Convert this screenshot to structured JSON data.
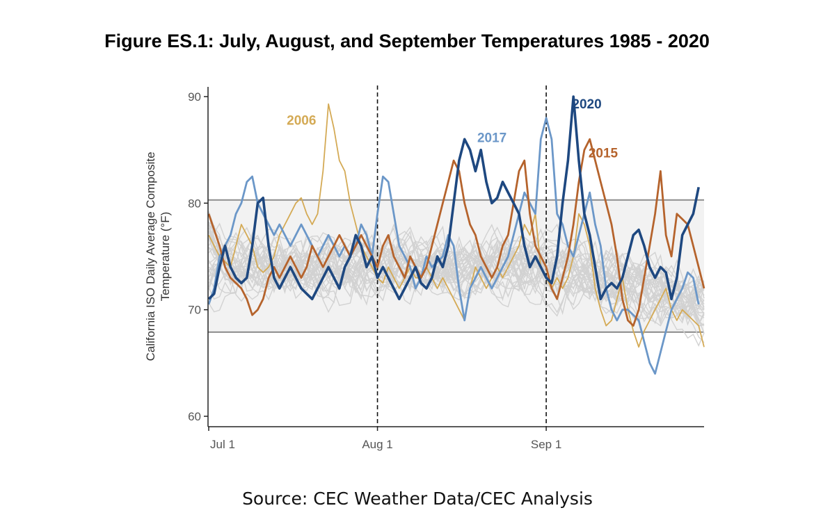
{
  "figure": {
    "title": "Figure ES.1: July, August, and September Temperatures 1985 - 2020",
    "source": "Source: CEC Weather Data/CEC Analysis"
  },
  "chart_data": {
    "type": "line",
    "ylabel": "California ISO Daily Average Composite Temperature (°F)",
    "xlabel": "",
    "ylim": [
      59,
      91
    ],
    "xlim": [
      1,
      92
    ],
    "yticks": [
      60,
      70,
      80,
      90
    ],
    "xticks": [
      {
        "day": 1,
        "label": "Jul 1"
      },
      {
        "day": 32,
        "label": "Aug 1"
      },
      {
        "day": 63,
        "label": "Sep 1"
      }
    ],
    "vertical_markers": [
      32,
      63
    ],
    "band": {
      "low": 67.9,
      "high": 80.3
    },
    "grid": false,
    "background_years_range": "1985 - 2020",
    "background_color": "#d2d2d2",
    "highlighted_series": [
      {
        "name": "2006",
        "color": "#d4aa55",
        "label_day": 23,
        "label_value": 88.8,
        "values": [
          77,
          76,
          75,
          74.5,
          74,
          76,
          78,
          77,
          76,
          74,
          73.5,
          74,
          75,
          77,
          78,
          79,
          80,
          80.5,
          79,
          78,
          79,
          83,
          89.3,
          87,
          84,
          83,
          80,
          78,
          76,
          75,
          74,
          73,
          72.5,
          74,
          73,
          72,
          73,
          74,
          73,
          73,
          74,
          73,
          72,
          73,
          72,
          71,
          70,
          69,
          72,
          74,
          73,
          72,
          73,
          74,
          73,
          74,
          75,
          76,
          78,
          77,
          79,
          74,
          73,
          72,
          73,
          72,
          73,
          75,
          79,
          78,
          76,
          72,
          70,
          68.5,
          69,
          71,
          73,
          70,
          68,
          66.5,
          68,
          69,
          70,
          71,
          72,
          70,
          69,
          70,
          69.5,
          69,
          68.5,
          66.5
        ]
      },
      {
        "name": "2017",
        "color": "#6b97c8",
        "label_day": 58,
        "label_value": 86.9,
        "values": [
          70.5,
          72,
          75,
          76,
          77,
          79,
          80,
          82,
          82.5,
          80,
          79,
          78,
          77,
          78,
          77,
          76,
          77,
          78,
          77,
          76,
          75,
          76,
          77,
          76,
          75,
          76,
          75,
          76,
          78,
          77,
          75,
          79,
          82.5,
          82,
          79,
          76,
          75,
          74,
          72,
          73,
          75,
          74,
          74.5,
          75,
          77,
          76,
          72,
          69,
          72,
          73,
          74,
          73,
          72,
          73,
          74,
          75,
          77,
          79,
          81,
          80,
          79,
          86,
          88,
          86,
          79,
          78,
          76,
          75,
          77,
          79,
          81,
          78,
          76,
          72,
          70,
          69,
          70,
          70,
          69.5,
          69,
          67,
          65,
          64,
          66,
          68,
          70,
          71,
          72,
          73.5,
          73,
          70.5
        ]
      },
      {
        "name": "2015",
        "color": "#b5632c",
        "label_day": 70,
        "label_value": 85.2,
        "values": [
          79,
          77.5,
          76,
          74,
          73,
          72.5,
          72,
          71,
          69.5,
          70,
          71,
          73,
          74,
          73,
          74,
          75,
          74,
          73,
          74,
          76,
          75,
          74,
          75,
          76,
          77,
          76,
          75,
          76,
          77,
          76,
          75,
          74,
          76,
          77,
          75,
          74,
          73,
          75,
          74,
          73,
          74,
          76,
          78,
          80,
          82,
          84,
          83,
          80,
          78,
          77,
          75,
          74,
          73,
          74,
          76,
          77,
          80,
          83,
          84,
          79,
          76,
          75,
          74,
          72,
          71,
          73,
          75,
          78,
          82,
          85,
          86,
          84,
          82,
          80,
          78,
          75,
          71,
          69,
          68.5,
          70,
          73,
          76,
          79,
          83,
          77,
          75,
          79,
          78.5,
          78,
          76,
          74,
          72
        ]
      },
      {
        "name": "2020",
        "color": "#1e4880",
        "label_day": 67,
        "label_value": 89.4,
        "values": [
          71,
          71.5,
          74,
          76,
          74,
          73,
          72.5,
          73,
          76,
          80,
          80.5,
          76,
          73,
          72,
          73,
          74,
          73,
          72,
          71.5,
          71,
          72,
          73,
          74,
          73,
          72,
          74,
          75,
          77,
          76,
          74,
          75,
          73,
          74,
          73,
          72,
          71,
          72,
          73,
          74,
          72.5,
          72,
          73,
          75,
          74,
          76,
          80,
          84,
          86,
          85,
          83,
          85,
          82,
          80,
          80.5,
          82,
          81,
          80,
          79,
          76,
          74,
          75,
          74,
          73,
          72.5,
          75,
          80,
          84,
          90,
          84,
          79,
          77,
          74,
          71,
          72,
          72.5,
          72,
          73,
          75,
          77,
          77.5,
          76,
          74,
          73,
          74,
          73.5,
          71,
          73,
          77,
          78,
          79,
          81.5
        ]
      }
    ]
  }
}
